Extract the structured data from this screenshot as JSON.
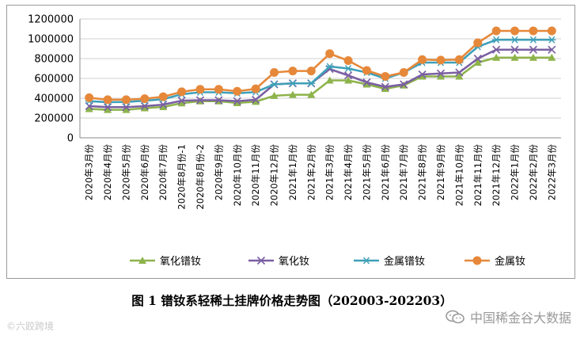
{
  "chart_data": {
    "type": "line",
    "categories": [
      "2020年3月份",
      "2020年4月份",
      "2020年5月份",
      "2020年6月份",
      "2020年7月份",
      "2020年8月份-1",
      "2020年8月份-2",
      "2020年9月份",
      "2020年10月份",
      "2020年11月份",
      "2020年12月份",
      "2021年1月份",
      "2021年2月份",
      "2021年3月份",
      "2021年4月份",
      "2021年5月份",
      "2021年6月份",
      "2021年7月份",
      "2021年8月份",
      "2021年9月份",
      "2021年10月份",
      "2021年11月份",
      "2021年12月份",
      "2022年1月份",
      "2022年2月份",
      "2022年3月份"
    ],
    "ylim": [
      0,
      1200000
    ],
    "yticks": [
      "0",
      "200000",
      "400000",
      "600000",
      "800000",
      "1000000",
      "1200000"
    ],
    "grid": true,
    "legend_position": "bottom",
    "series": [
      {
        "name": "氧化镨钕",
        "color": "#8db34b",
        "marker": "triangle",
        "values": [
          292000,
          283000,
          283000,
          300000,
          312000,
          350000,
          370000,
          370000,
          352000,
          365000,
          425000,
          435000,
          435000,
          580000,
          580000,
          540000,
          495000,
          530000,
          620000,
          620000,
          620000,
          760000,
          810000,
          810000,
          810000,
          810000
        ]
      },
      {
        "name": "氧化钕",
        "color": "#7a5fa2",
        "marker": "x",
        "values": [
          320000,
          310000,
          310000,
          320000,
          335000,
          375000,
          380000,
          380000,
          370000,
          385000,
          540000,
          550000,
          550000,
          695000,
          630000,
          560000,
          515000,
          540000,
          640000,
          650000,
          660000,
          800000,
          890000,
          890000,
          890000,
          890000
        ]
      },
      {
        "name": "金属镨钕",
        "color": "#3ea0b8",
        "marker": "asterisk",
        "values": [
          370000,
          360000,
          362000,
          375000,
          390000,
          440000,
          460000,
          460000,
          450000,
          462000,
          540000,
          550000,
          550000,
          720000,
          700000,
          660000,
          600000,
          660000,
          760000,
          760000,
          760000,
          920000,
          990000,
          990000,
          990000,
          990000
        ]
      },
      {
        "name": "金属钕",
        "color": "#e6883a",
        "marker": "circle",
        "values": [
          405000,
          385000,
          385000,
          395000,
          415000,
          465000,
          490000,
          490000,
          470000,
          495000,
          660000,
          675000,
          675000,
          850000,
          780000,
          680000,
          620000,
          660000,
          790000,
          785000,
          790000,
          960000,
          1080000,
          1080000,
          1080000,
          1080000
        ]
      }
    ]
  },
  "caption": "图 1  镨钕系轻稀土挂牌价格走势图（202003-202203）",
  "watermark_left": "©六跤跨境",
  "watermark_right": "中国稀金谷大数据"
}
